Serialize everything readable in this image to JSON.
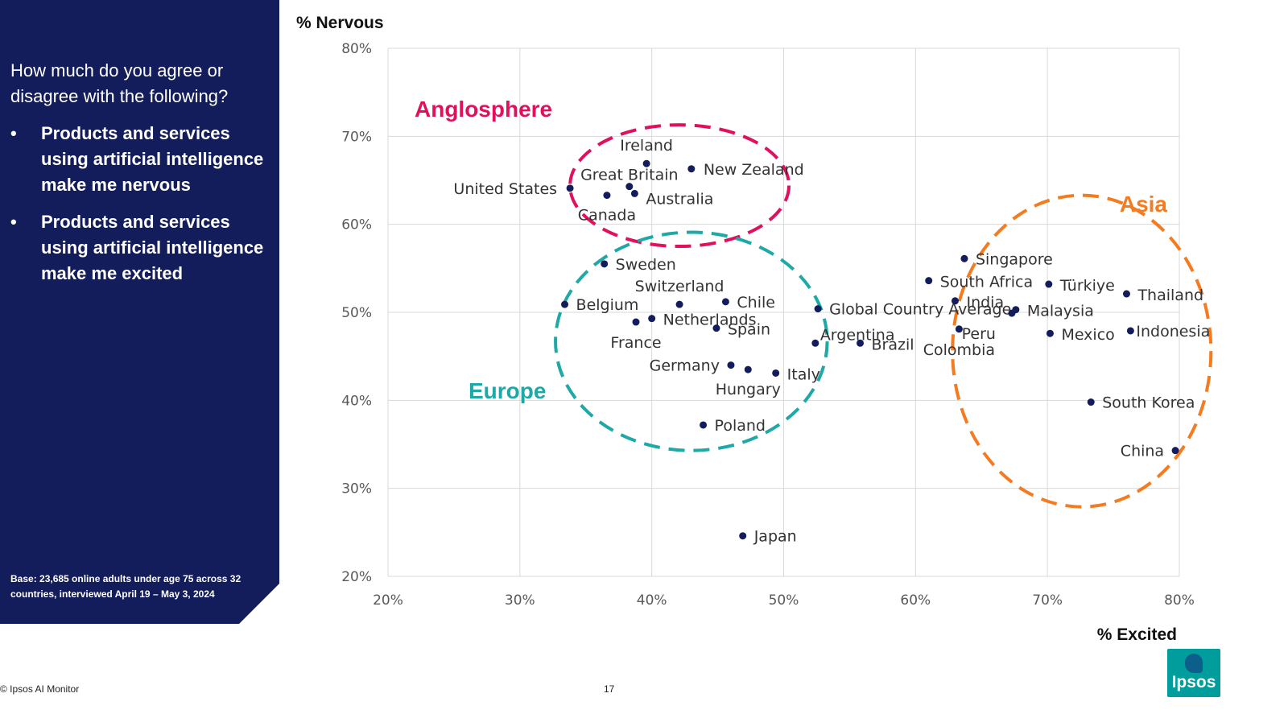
{
  "side_panel": {
    "question": "How much do you agree or disagree with the following?",
    "bullet_glyph": "•",
    "bullets": [
      "Products and services using artificial intelligence make me nervous",
      "Products and services using artificial intelligence make me excited"
    ],
    "base_note": "Base: 23,685 online adults under age 75 across 32 countries, interviewed April 19 – May 3, 2024"
  },
  "footer": {
    "source": "© Ipsos AI Monitor",
    "page_number": "17"
  },
  "logo": {
    "text": "Ipsos"
  },
  "chart_data": {
    "type": "scatter",
    "title": "",
    "xlabel": "% Excited",
    "ylabel": "% Nervous",
    "xlim": [
      20,
      80
    ],
    "ylim": [
      20,
      80
    ],
    "xticks": [
      20,
      30,
      40,
      50,
      60,
      70,
      80
    ],
    "yticks": [
      20,
      30,
      40,
      50,
      60,
      70,
      80
    ],
    "xtick_labels": [
      "20%",
      "30%",
      "40%",
      "50%",
      "60%",
      "70%",
      "80%"
    ],
    "ytick_labels": [
      "20%",
      "30%",
      "40%",
      "50%",
      "60%",
      "70%",
      "80%"
    ],
    "grid": true,
    "point_color": "#141d5b",
    "points": [
      {
        "label": "Ireland",
        "x": 39.6,
        "y": 66.9
      },
      {
        "label": "New Zealand",
        "x": 43.0,
        "y": 66.3
      },
      {
        "label": "Great Britain",
        "x": 38.3,
        "y": 64.3
      },
      {
        "label": "United States",
        "x": 33.8,
        "y": 64.1
      },
      {
        "label": "Australia",
        "x": 38.7,
        "y": 63.5
      },
      {
        "label": "Canada",
        "x": 36.6,
        "y": 63.3
      },
      {
        "label": "Sweden",
        "x": 36.4,
        "y": 55.5
      },
      {
        "label": "Switzerland",
        "x": 42.1,
        "y": 50.9
      },
      {
        "label": "Chile",
        "x": 45.6,
        "y": 51.2
      },
      {
        "label": "Belgium",
        "x": 33.4,
        "y": 50.9
      },
      {
        "label": "Netherlands",
        "x": 40.0,
        "y": 49.3
      },
      {
        "label": "France",
        "x": 38.8,
        "y": 48.9
      },
      {
        "label": "Spain",
        "x": 44.9,
        "y": 48.2
      },
      {
        "label": "Germany",
        "x": 46.0,
        "y": 44.0
      },
      {
        "label": "Hungary",
        "x": 47.3,
        "y": 43.5
      },
      {
        "label": "Italy",
        "x": 49.4,
        "y": 43.1
      },
      {
        "label": "Argentina",
        "x": 52.4,
        "y": 46.5
      },
      {
        "label": "Poland",
        "x": 43.9,
        "y": 37.2
      },
      {
        "label": "Japan",
        "x": 46.9,
        "y": 24.6
      },
      {
        "label": "Global Country Average",
        "x": 52.6,
        "y": 50.4
      },
      {
        "label": "Brazil",
        "x": 55.8,
        "y": 46.5
      },
      {
        "label": "Singapore",
        "x": 63.7,
        "y": 56.1
      },
      {
        "label": "South Africa",
        "x": 61.0,
        "y": 53.6
      },
      {
        "label": "India",
        "x": 63.0,
        "y": 51.3
      },
      {
        "label": "Colombia",
        "x": 63.3,
        "y": 48.1
      },
      {
        "label": "Peru",
        "x": 67.3,
        "y": 49.9
      },
      {
        "label": "Malaysia",
        "x": 67.6,
        "y": 50.3
      },
      {
        "label": "Türkiye",
        "x": 70.1,
        "y": 53.2
      },
      {
        "label": "Mexico",
        "x": 70.2,
        "y": 47.6
      },
      {
        "label": "Thailand",
        "x": 76.0,
        "y": 52.1
      },
      {
        "label": "Indonesia",
        "x": 76.3,
        "y": 47.9
      },
      {
        "label": "South Korea",
        "x": 73.3,
        "y": 39.8
      },
      {
        "label": "China",
        "x": 79.7,
        "y": 34.3
      }
    ],
    "clusters": [
      {
        "name": "Anglosphere",
        "color": "#e0105f",
        "cx": 42.1,
        "cy": 64.4,
        "rx": 8.3,
        "ry": 6.9
      },
      {
        "name": "Europe",
        "color": "#1ea8a6",
        "cx": 43.0,
        "cy": 46.7,
        "rx": 10.3,
        "ry": 12.4
      },
      {
        "name": "Asia",
        "color": "#f47b20",
        "cx": 72.6,
        "cy": 45.6,
        "rx": 9.8,
        "ry": 17.7
      }
    ]
  }
}
